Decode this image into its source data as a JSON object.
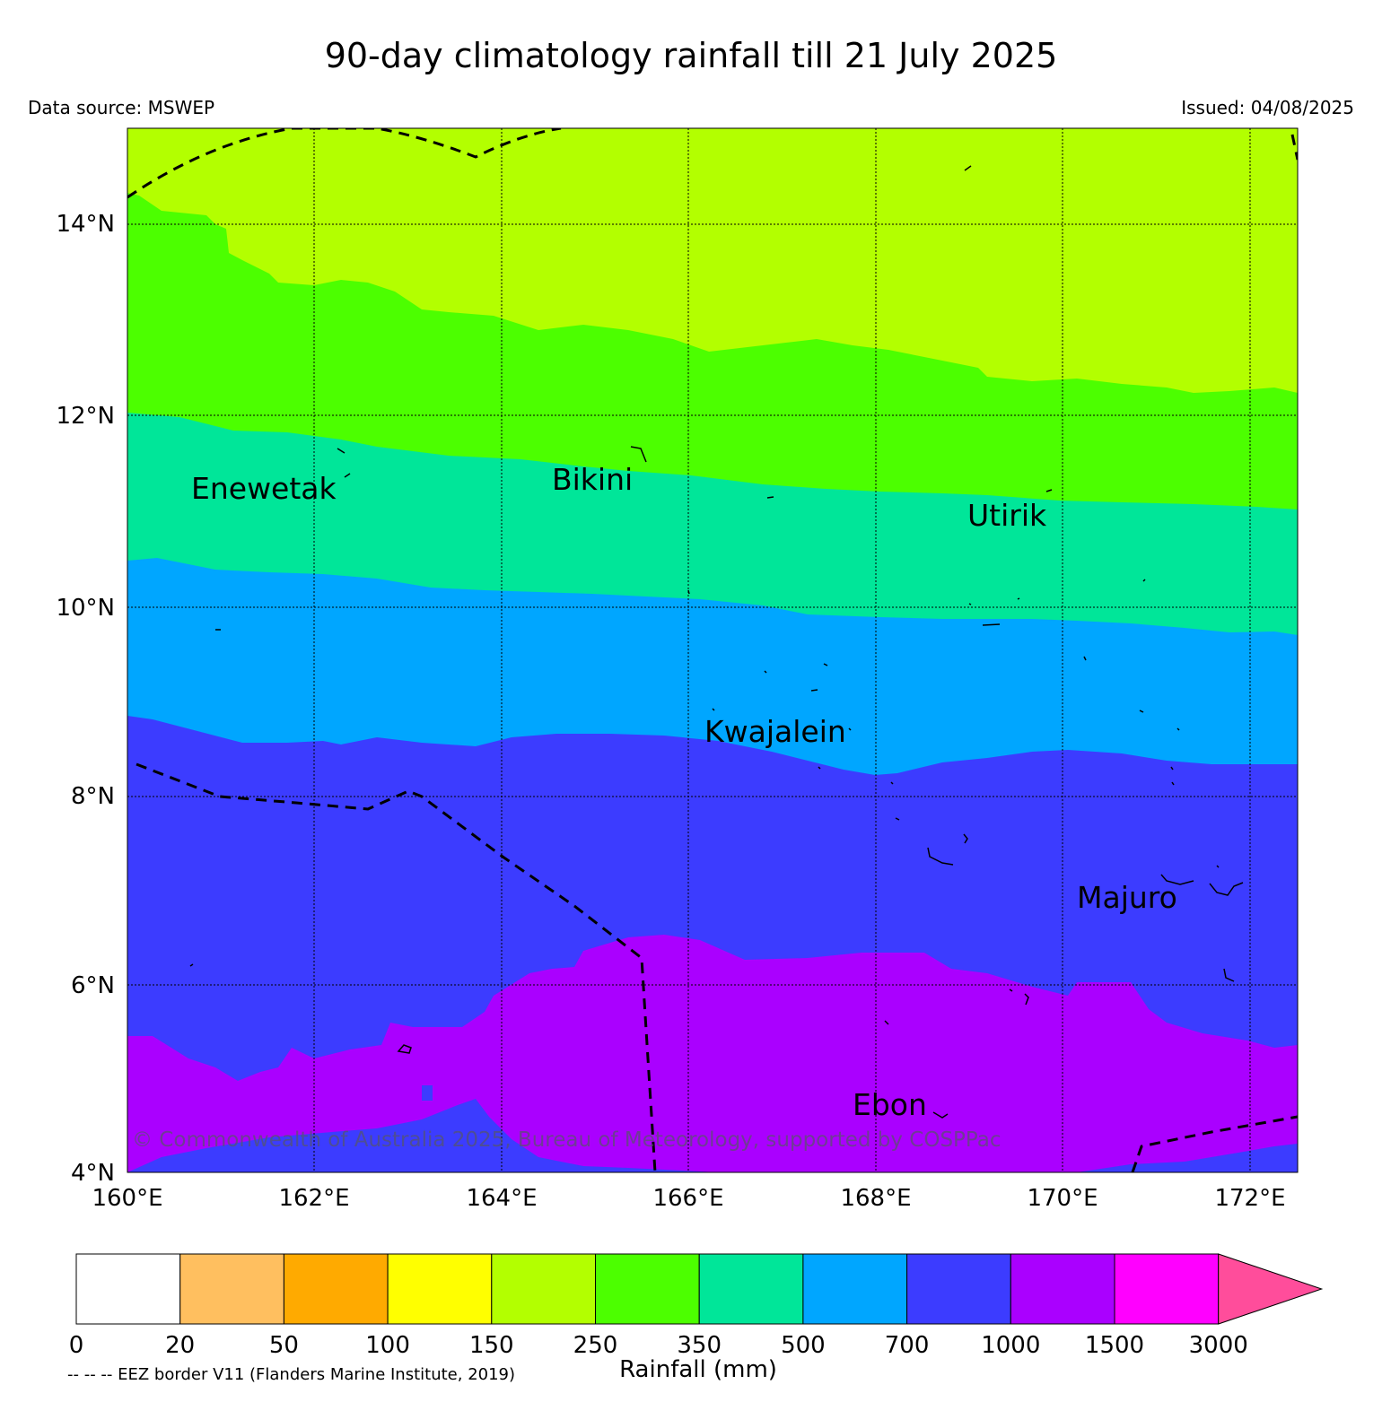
{
  "title": "90-day climatology rainfall till 21 July 2025",
  "data_source": "Data source: MSWEP",
  "issued": "Issued: 04/08/2025",
  "copyright": "© Commonwealth of Australia 2025, Bureau of Meteorology, supported by COSPPac",
  "eez_note": "-- -- -- EEZ border V11 (Flanders Marine Institute, 2019)",
  "colorbar": {
    "label": "Rainfall (mm)",
    "ticks": [
      "0",
      "20",
      "50",
      "100",
      "150",
      "250",
      "350",
      "500",
      "700",
      "1000",
      "1500",
      "3000"
    ],
    "colors": [
      "#ffffff",
      "#ffbf5f",
      "#ffaa00",
      "#ffff00",
      "#b3ff00",
      "#4cff00",
      "#00e699",
      "#00a6ff",
      "#3c3cff",
      "#aa00ff",
      "#ff00ff",
      "#ff4d9b"
    ]
  },
  "map": {
    "lon_range": [
      160,
      172.5
    ],
    "lat_range": [
      4,
      15
    ],
    "x_ticks": [
      "160°E",
      "162°E",
      "164°E",
      "166°E",
      "168°E",
      "170°E",
      "172°E"
    ],
    "y_ticks": [
      "14°N",
      "12°N",
      "10°N",
      "8°N",
      "6°N",
      "4°N"
    ],
    "grid": "dotted",
    "places": [
      {
        "name": "Enewetak",
        "lon": 160.7,
        "lat": 11.3
      },
      {
        "name": "Bikini",
        "lon": 164.5,
        "lat": 11.4
      },
      {
        "name": "Utirik",
        "lon": 169.0,
        "lat": 10.9
      },
      {
        "name": "Kwajalein",
        "lon": 166.2,
        "lat": 8.6
      },
      {
        "name": "Majuro",
        "lon": 170.2,
        "lat": 6.9
      },
      {
        "name": "Ebon",
        "lon": 167.8,
        "lat": 4.7
      }
    ]
  }
}
